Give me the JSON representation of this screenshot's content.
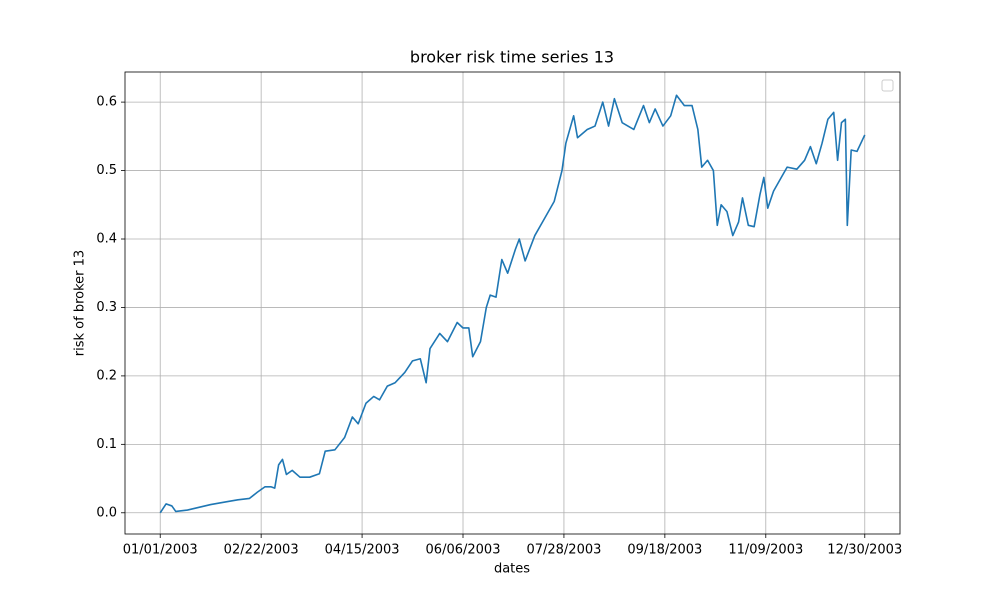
{
  "chart_data": {
    "type": "line",
    "title": "broker risk time series 13",
    "x_label": "dates",
    "y_label": "risk of broker 13",
    "x": [
      "01/01/2003",
      "01/04/2003",
      "01/07/2003",
      "01/09/2003",
      "01/15/2003",
      "01/21/2003",
      "01/27/2003",
      "01/31/2003",
      "02/04/2003",
      "02/10/2003",
      "02/16/2003",
      "02/20/2003",
      "02/24/2003",
      "02/27/2003",
      "03/01/2003",
      "03/03/2003",
      "03/05/2003",
      "03/07/2003",
      "03/10/2003",
      "03/14/2003",
      "03/19/2003",
      "03/24/2003",
      "03/27/2003",
      "04/01/2003",
      "04/06/2003",
      "04/10/2003",
      "04/13/2003",
      "04/17/2003",
      "04/21/2003",
      "04/24/2003",
      "04/28/2003",
      "05/02/2003",
      "05/07/2003",
      "05/11/2003",
      "05/15/2003",
      "05/18/2003",
      "05/20/2003",
      "05/25/2003",
      "05/29/2003",
      "06/03/2003",
      "06/06/2003",
      "06/09/2003",
      "06/11/2003",
      "06/15/2003",
      "06/18/2003",
      "06/20/2003",
      "06/23/2003",
      "06/26/2003",
      "06/29/2003",
      "07/03/2003",
      "07/05/2003",
      "07/08/2003",
      "07/13/2003",
      "07/18/2003",
      "07/23/2003",
      "07/27/2003",
      "07/29/2003",
      "08/02/2003",
      "08/04/2003",
      "08/09/2003",
      "08/13/2003",
      "08/17/2003",
      "08/20/2003",
      "08/23/2003",
      "08/27/2003",
      "09/02/2003",
      "09/07/2003",
      "09/10/2003",
      "09/13/2003",
      "09/17/2003",
      "09/21/2003",
      "09/24/2003",
      "09/28/2003",
      "10/02/2003",
      "10/05/2003",
      "10/07/2003",
      "10/10/2003",
      "10/13/2003",
      "10/15/2003",
      "10/17/2003",
      "10/20/2003",
      "10/23/2003",
      "10/26/2003",
      "10/28/2003",
      "10/31/2003",
      "11/03/2003",
      "11/06/2003",
      "11/08/2003",
      "11/10/2003",
      "11/13/2003",
      "11/17/2003",
      "11/20/2003",
      "11/25/2003",
      "11/29/2003",
      "12/02/2003",
      "12/05/2003",
      "12/08/2003",
      "12/11/2003",
      "12/14/2003",
      "12/16/2003",
      "12/18/2003",
      "12/20/2003",
      "12/21/2003",
      "12/23/2003",
      "12/26/2003",
      "12/30/2003"
    ],
    "values": [
      0.0,
      0.013,
      0.01,
      0.002,
      0.004,
      0.008,
      0.012,
      0.014,
      0.016,
      0.019,
      0.021,
      0.03,
      0.038,
      0.038,
      0.036,
      0.07,
      0.078,
      0.056,
      0.062,
      0.052,
      0.052,
      0.057,
      0.09,
      0.092,
      0.11,
      0.14,
      0.13,
      0.16,
      0.17,
      0.165,
      0.185,
      0.19,
      0.205,
      0.222,
      0.225,
      0.19,
      0.24,
      0.262,
      0.25,
      0.278,
      0.27,
      0.27,
      0.228,
      0.25,
      0.3,
      0.318,
      0.315,
      0.37,
      0.35,
      0.385,
      0.4,
      0.368,
      0.405,
      0.43,
      0.455,
      0.5,
      0.54,
      0.58,
      0.548,
      0.56,
      0.565,
      0.6,
      0.565,
      0.605,
      0.57,
      0.56,
      0.595,
      0.57,
      0.59,
      0.565,
      0.58,
      0.61,
      0.595,
      0.595,
      0.56,
      0.505,
      0.515,
      0.5,
      0.42,
      0.45,
      0.44,
      0.405,
      0.425,
      0.46,
      0.42,
      0.418,
      0.465,
      0.49,
      0.445,
      0.47,
      0.49,
      0.505,
      0.502,
      0.515,
      0.535,
      0.51,
      0.54,
      0.575,
      0.585,
      0.515,
      0.57,
      0.575,
      0.42,
      0.53,
      0.528,
      0.552
    ],
    "color": "#1f77b4",
    "xticks": [
      "01/01/2003",
      "02/22/2003",
      "04/15/2003",
      "06/06/2003",
      "07/28/2003",
      "09/18/2003",
      "11/09/2003",
      "12/30/2003"
    ],
    "ylim": [
      -0.031,
      0.644
    ],
    "yticks": [
      {
        "value": 0,
        "label": "0.0"
      },
      0.1,
      0.2,
      0.3,
      0.4,
      0.5,
      0.6
    ],
    "grid": true,
    "legend": "upper right"
  }
}
